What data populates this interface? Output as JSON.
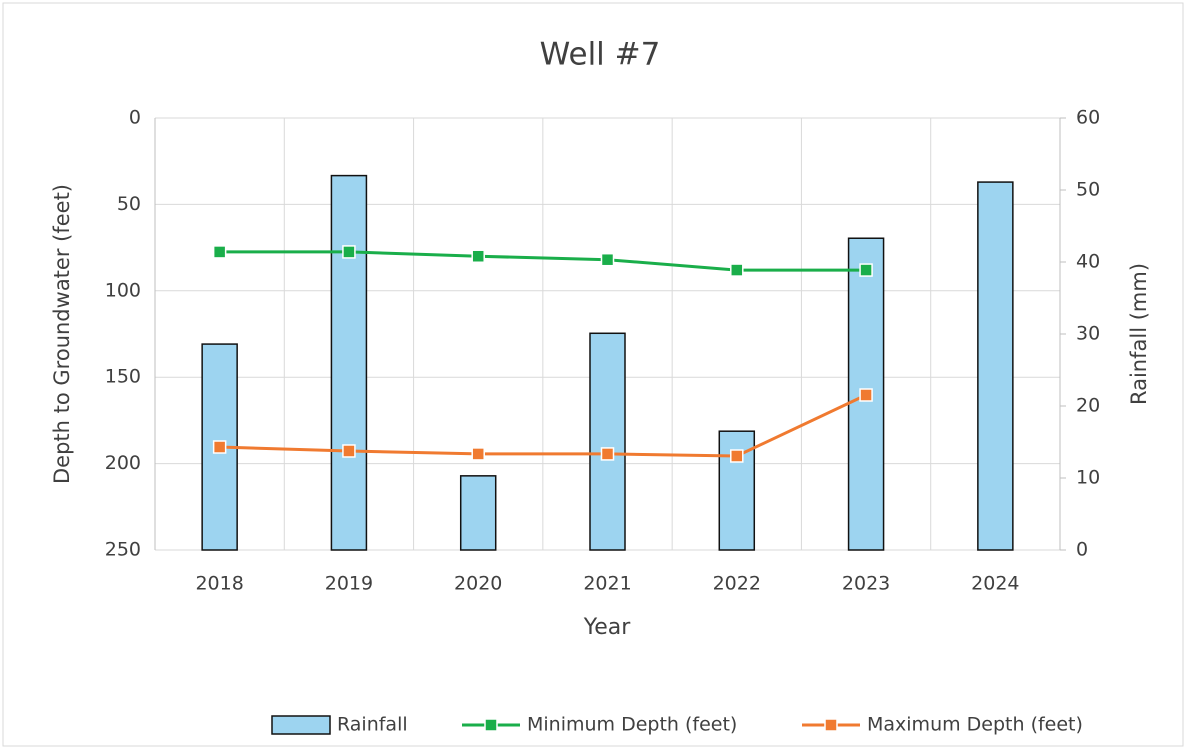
{
  "chart_data": {
    "type": "combo",
    "title": "Well #7",
    "x_label": "Year",
    "y_label": "Depth to Groundwater (feet)",
    "y2_label": "Rainfall (mm)",
    "categories": [
      "2018",
      "2019",
      "2020",
      "2021",
      "2022",
      "2023",
      "2024"
    ],
    "series": [
      {
        "name": "Rainfall",
        "type": "bar",
        "axis": "y2",
        "color": "#9dd4f0",
        "values": [
          28.6,
          52,
          10.3,
          30.1,
          16.5,
          43.3,
          51.1
        ]
      },
      {
        "name": "Minimum Depth (feet)",
        "type": "line",
        "axis": "y",
        "color": "#1aae4a",
        "values": [
          77.5,
          77.5,
          80,
          82,
          88,
          88,
          null
        ]
      },
      {
        "name": "Maximum Depth (feet)",
        "type": "line",
        "axis": "y",
        "color": "#f07a30",
        "values": [
          190.4,
          192.7,
          194.4,
          194.4,
          195.6,
          160.3,
          null
        ]
      }
    ],
    "ylim": [
      0,
      250
    ],
    "yticks": [
      0,
      50,
      100,
      150,
      200,
      250
    ],
    "y_inverted": true,
    "y2lim": [
      0,
      60
    ],
    "y2ticks": [
      0,
      10,
      20,
      30,
      40,
      50,
      60
    ],
    "grid": true,
    "legend": "bottom"
  }
}
